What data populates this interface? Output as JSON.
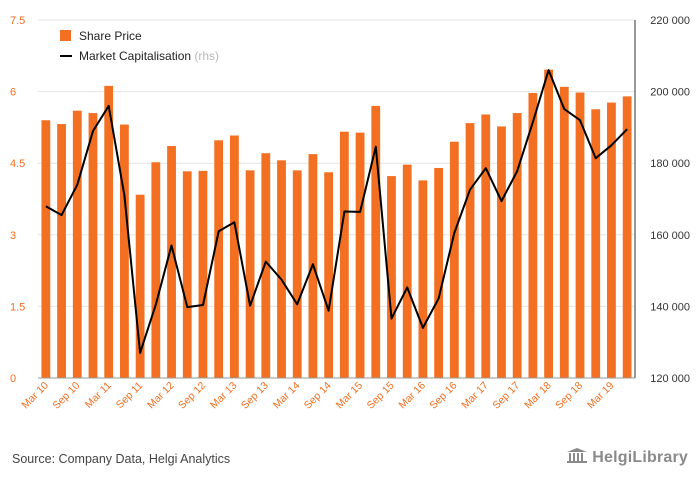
{
  "chart_data": {
    "type": "bar",
    "categories": [
      "Mar 10",
      "Jun 10",
      "Sep 10",
      "Dec 10",
      "Mar 11",
      "Jun 11",
      "Sep 11",
      "Dec 11",
      "Mar 12",
      "Jun 12",
      "Sep 12",
      "Dec 12",
      "Mar 13",
      "Jun 13",
      "Sep 13",
      "Dec 13",
      "Mar 14",
      "Jun 14",
      "Sep 14",
      "Dec 14",
      "Mar 15",
      "Jun 15",
      "Sep 15",
      "Dec 15",
      "Mar 16",
      "Jun 16",
      "Sep 16",
      "Dec 16",
      "Mar 17",
      "Jun 17",
      "Sep 17",
      "Dec 17",
      "Mar 18",
      "Jun 18",
      "Sep 18",
      "Dec 18",
      "Mar 19",
      "Jun 19"
    ],
    "x_tick_labels": [
      "Mar 10",
      "Sep 10",
      "Mar 11",
      "Sep 11",
      "Mar 12",
      "Sep 12",
      "Mar 13",
      "Sep 13",
      "Mar 14",
      "Sep 14",
      "Mar 15",
      "Sep 15",
      "Mar 16",
      "Sep 16",
      "Mar 17",
      "Sep 17",
      "Mar 18",
      "Sep 18",
      "Mar 19"
    ],
    "series": [
      {
        "name": "Share Price",
        "kind": "bar",
        "axis": "left",
        "color": "#f36f21",
        "values": [
          5.4,
          5.32,
          5.6,
          5.55,
          6.12,
          5.31,
          3.84,
          4.52,
          4.86,
          4.33,
          4.34,
          4.98,
          5.08,
          4.35,
          4.71,
          4.56,
          4.35,
          4.69,
          4.31,
          5.16,
          5.14,
          5.7,
          4.23,
          4.47,
          4.14,
          4.4,
          4.95,
          5.34,
          5.52,
          5.27,
          5.55,
          5.97,
          6.46,
          6.1,
          5.98,
          5.63,
          5.77,
          5.9
        ]
      },
      {
        "name": "Market Capitalisation",
        "name_suffix": "(rhs)",
        "kind": "line",
        "axis": "right",
        "color": "#000000",
        "values": [
          168000,
          165500,
          174000,
          189000,
          196000,
          171000,
          127000,
          140500,
          157000,
          139800,
          140400,
          161000,
          163500,
          140200,
          152500,
          147500,
          140600,
          151800,
          138800,
          166500,
          166400,
          184600,
          136600,
          145300,
          134000,
          142200,
          160500,
          172600,
          178600,
          169400,
          177800,
          191500,
          206000,
          195100,
          192000,
          181400,
          185000,
          189500
        ]
      }
    ],
    "y_left": {
      "ylim": [
        0,
        7.5
      ],
      "ticks": [
        0,
        1.5,
        3,
        4.5,
        6,
        7.5
      ],
      "tick_labels": [
        "0",
        "1.5",
        "3",
        "4.5",
        "6",
        "7.5"
      ]
    },
    "y_right": {
      "ylim": [
        120000,
        220000
      ],
      "ticks": [
        120000,
        140000,
        160000,
        180000,
        200000,
        220000
      ],
      "tick_labels": [
        "120 000",
        "140 000",
        "160 000",
        "180 000",
        "200 000",
        "220 000"
      ]
    },
    "grid": true,
    "legend_position": "top-left",
    "title": "",
    "xlabel": "",
    "ylabel": ""
  },
  "colors": {
    "bar": "#f36f21",
    "line": "#000000",
    "left_axis_text": "#f36f21",
    "right_axis_text": "#333333",
    "grid": "#e3e3e3",
    "legend_muted": "#b8b8b8"
  },
  "footer": {
    "source": "Source: Company Data, Helgi Analytics",
    "brand": "HelgiLibrary",
    "brand_icon": "library-building-icon"
  }
}
